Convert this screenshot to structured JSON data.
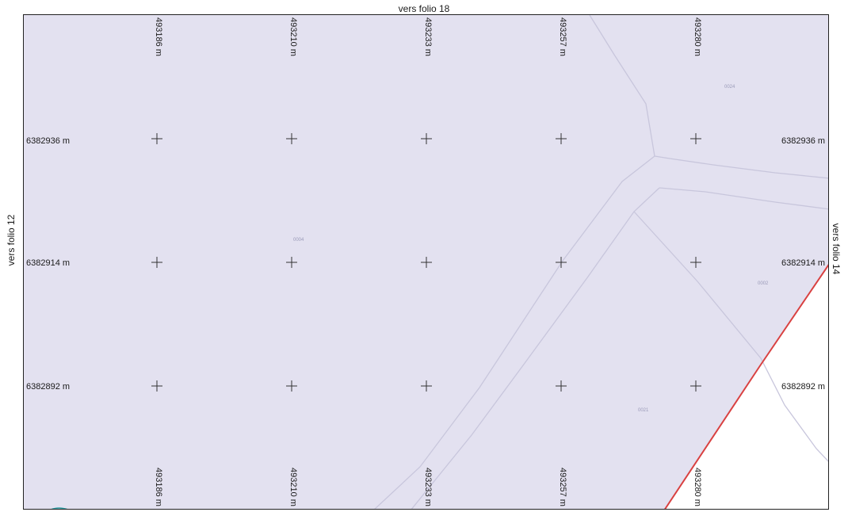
{
  "edges": {
    "top": "vers folio 18",
    "left": "vers folio 12",
    "right": "vers folio 14"
  },
  "grid": {
    "eastings": [
      "493186 m",
      "493210 m",
      "493233 m",
      "493257 m",
      "493280 m"
    ],
    "northings": [
      "6382936 m",
      "6382914 m",
      "6382892 m"
    ]
  },
  "parcels": [
    "0024",
    "0004",
    "0002",
    "0021"
  ],
  "colors": {
    "parcel_fill": "#e3e1f0",
    "road_line": "#c8c6dc",
    "boundary": "#d94141",
    "outside": "#ffffff"
  }
}
